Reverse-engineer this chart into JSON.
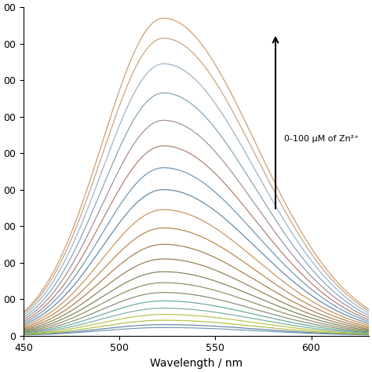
{
  "xlabel": "Wavelength / nm",
  "ylabel": "",
  "x_min": 450,
  "x_max": 630,
  "y_min": 0,
  "y_max": 900,
  "yticks": [
    0,
    100,
    200,
    300,
    400,
    500,
    600,
    700,
    800,
    900
  ],
  "ytick_labels": [
    "0",
    "00",
    "00",
    "00",
    "00",
    "00",
    "00",
    "00",
    "00",
    "00"
  ],
  "xticks": [
    450,
    500,
    550,
    600
  ],
  "peak_wavelength": 523,
  "annotation_text": "0-100 μM of Zn²⁺",
  "n_curves": 21,
  "peak_heights": [
    22,
    30,
    42,
    58,
    75,
    95,
    118,
    145,
    175,
    210,
    250,
    295,
    345,
    400,
    460,
    520,
    590,
    665,
    745,
    815,
    870
  ],
  "curve_colors": [
    "#6090a8",
    "#5878a0",
    "#aab830",
    "#b0bf38",
    "#68a898",
    "#58a090",
    "#788060",
    "#888050",
    "#6a7848",
    "#887040",
    "#9a7038",
    "#b07838",
    "#c08848",
    "#507898",
    "#6088a8",
    "#a87060",
    "#988090",
    "#7898b0",
    "#90a8c0",
    "#c09870",
    "#c89060"
  ],
  "figsize": [
    4.74,
    4.74
  ],
  "dpi": 100
}
